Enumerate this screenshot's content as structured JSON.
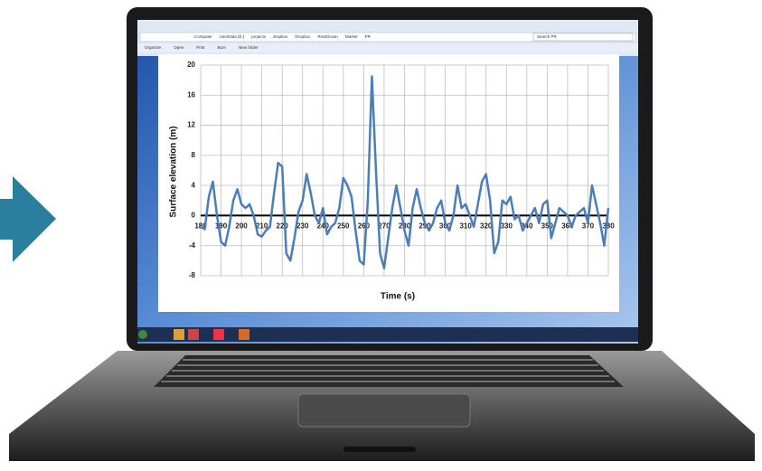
{
  "explorer": {
    "breadcrumb": [
      "Computer",
      "UserData (E:)",
      "projects",
      "dropbox",
      "Dropbox",
      "RealOcean",
      "Market",
      "PR"
    ],
    "search": "Search PR",
    "toolbar": [
      "Organize",
      "Open",
      "Print",
      "Burn",
      "New folder"
    ]
  },
  "chart_data": {
    "type": "line",
    "x_label": "Time (s)",
    "y_label": "Surface elevation (m)",
    "x": [
      180,
      182,
      184,
      186,
      188,
      190,
      192,
      194,
      196,
      198,
      200,
      202,
      204,
      206,
      208,
      210,
      212,
      214,
      216,
      218,
      220,
      222,
      224,
      226,
      228,
      230,
      232,
      234,
      236,
      238,
      240,
      242,
      244,
      246,
      248,
      250,
      252,
      254,
      256,
      258,
      260,
      262,
      264,
      266,
      268,
      270,
      272,
      274,
      276,
      278,
      280,
      282,
      284,
      286,
      288,
      290,
      292,
      294,
      296,
      298,
      300,
      302,
      304,
      306,
      308,
      310,
      312,
      314,
      316,
      318,
      320,
      322,
      324,
      326,
      328,
      330,
      332,
      334,
      336,
      338,
      340,
      342,
      344,
      346,
      348,
      350,
      352,
      354,
      356,
      358,
      360,
      362,
      364,
      366,
      368,
      370,
      372,
      374,
      376,
      378,
      380
    ],
    "series": [
      {
        "color": "#4a7ebb",
        "values": [
          -1.5,
          -1.8,
          2.5,
          4.5,
          0,
          -3.5,
          -4,
          -1.5,
          2,
          3.5,
          1.5,
          1,
          1.5,
          0,
          -2.5,
          -2.8,
          -2,
          -1.5,
          3,
          7,
          6.5,
          -5,
          -6,
          -3,
          0.5,
          2,
          5.5,
          3,
          0,
          -1,
          1,
          -2.5,
          -1.5,
          -1,
          1,
          5,
          4,
          2.5,
          -2,
          -6,
          -6.5,
          2,
          18.5,
          6,
          -5,
          -7,
          -3,
          1,
          4,
          1,
          -2,
          -4,
          1,
          3.5,
          1,
          -1,
          -2,
          -1,
          1,
          2,
          -1,
          -2,
          0,
          4,
          1,
          1.5,
          0,
          -1.5,
          1.5,
          4.5,
          5.5,
          2,
          -5,
          -3.5,
          2,
          1.5,
          2.5,
          -0.5,
          0,
          -2,
          -1,
          0,
          1,
          -1,
          1.5,
          2,
          -3,
          -1,
          1,
          0.5,
          0,
          -1.5,
          0,
          0.5,
          1,
          -1,
          4,
          1.5,
          -1,
          -4,
          1
        ]
      }
    ],
    "xlim": [
      180,
      380
    ],
    "ylim": [
      -8,
      20
    ],
    "xticks": [
      180,
      190,
      200,
      210,
      220,
      230,
      240,
      250,
      260,
      270,
      280,
      290,
      300,
      310,
      320,
      330,
      340,
      350,
      360,
      370,
      380
    ],
    "yticks": [
      -8,
      -4,
      0,
      4,
      8,
      12,
      16,
      20
    ],
    "grid": true
  }
}
